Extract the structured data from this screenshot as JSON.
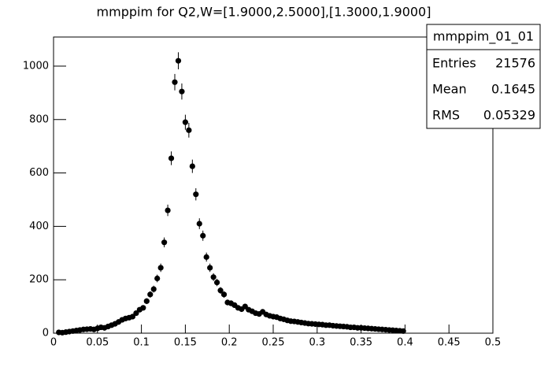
{
  "chart_data": {
    "type": "scatter",
    "title": "mmppim for Q2,W=[1.9000,2.5000],[1.3000,1.9000]",
    "stats": {
      "name": "mmppim_01_01",
      "rows": [
        [
          "Entries",
          21576
        ],
        [
          "Mean",
          0.1645
        ],
        [
          "RMS",
          0.05329
        ]
      ]
    },
    "color": "#000000",
    "xlim": [
      0,
      0.5
    ],
    "ylim": [
      0,
      1109
    ],
    "xticks": [
      0,
      0.05,
      0.1,
      0.15,
      0.2,
      0.25,
      0.3,
      0.35,
      0.4,
      0.45,
      0.5
    ],
    "yticks": [
      0,
      200,
      400,
      600,
      800,
      1000
    ],
    "x": [
      0.006,
      0.01,
      0.014,
      0.018,
      0.022,
      0.026,
      0.03,
      0.034,
      0.038,
      0.042,
      0.046,
      0.05,
      0.054,
      0.058,
      0.062,
      0.066,
      0.07,
      0.074,
      0.078,
      0.082,
      0.086,
      0.09,
      0.094,
      0.098,
      0.102,
      0.106,
      0.11,
      0.114,
      0.118,
      0.122,
      0.126,
      0.13,
      0.134,
      0.138,
      0.142,
      0.146,
      0.15,
      0.154,
      0.158,
      0.162,
      0.166,
      0.17,
      0.174,
      0.178,
      0.182,
      0.186,
      0.19,
      0.194,
      0.198,
      0.202,
      0.206,
      0.21,
      0.214,
      0.218,
      0.222,
      0.226,
      0.23,
      0.234,
      0.238,
      0.242,
      0.246,
      0.25,
      0.254,
      0.258,
      0.262,
      0.266,
      0.27,
      0.274,
      0.278,
      0.282,
      0.286,
      0.29,
      0.294,
      0.298,
      0.302,
      0.306,
      0.31,
      0.314,
      0.318,
      0.322,
      0.326,
      0.33,
      0.334,
      0.338,
      0.342,
      0.346,
      0.35,
      0.354,
      0.358,
      0.362,
      0.366,
      0.37,
      0.374,
      0.378,
      0.382,
      0.386,
      0.39,
      0.394,
      0.398
    ],
    "values": [
      3,
      2,
      4,
      6,
      8,
      10,
      12,
      14,
      15,
      16,
      14,
      18,
      22,
      20,
      25,
      30,
      35,
      42,
      50,
      55,
      58,
      62,
      75,
      88,
      95,
      120,
      145,
      165,
      205,
      245,
      340,
      460,
      655,
      940,
      1020,
      905,
      790,
      760,
      625,
      520,
      410,
      365,
      285,
      245,
      210,
      190,
      160,
      145,
      115,
      112,
      105,
      95,
      90,
      100,
      88,
      82,
      75,
      72,
      80,
      70,
      65,
      62,
      60,
      55,
      52,
      48,
      45,
      44,
      42,
      40,
      38,
      36,
      35,
      34,
      33,
      32,
      30,
      30,
      28,
      27,
      26,
      25,
      24,
      22,
      22,
      20,
      20,
      19,
      18,
      17,
      16,
      15,
      14,
      13,
      12,
      11,
      10,
      9,
      8
    ],
    "errors": [
      1.7,
      1.4,
      2,
      2.4,
      2.8,
      3.2,
      3.5,
      3.7,
      3.9,
      4,
      3.7,
      4.2,
      4.7,
      4.5,
      5,
      5.5,
      5.9,
      6.5,
      7.1,
      7.4,
      7.6,
      7.9,
      8.7,
      9.4,
      9.7,
      11,
      12,
      12.8,
      14.3,
      15.7,
      18.4,
      21.4,
      25.6,
      30.7,
      31.9,
      30.1,
      28.1,
      27.6,
      25,
      22.8,
      20.2,
      19.1,
      16.9,
      15.7,
      14.5,
      13.8,
      12.6,
      12,
      10.7,
      10.6,
      10.2,
      9.7,
      9.5,
      10,
      9.4,
      9.1,
      8.7,
      8.5,
      8.9,
      8.4,
      8.1,
      7.9,
      7.7,
      7.4,
      7.2,
      6.9,
      6.7,
      6.6,
      6.5,
      6.3,
      6.2,
      6,
      5.9,
      5.8,
      5.7,
      5.7,
      5.5,
      5.5,
      5.3,
      5.2,
      5.1,
      5,
      4.9,
      4.7,
      4.7,
      4.5,
      4.5,
      4.4,
      4.2,
      4.1,
      4,
      3.9,
      3.7,
      3.6,
      3.5,
      3.3,
      3.2,
      3,
      2.8
    ]
  }
}
